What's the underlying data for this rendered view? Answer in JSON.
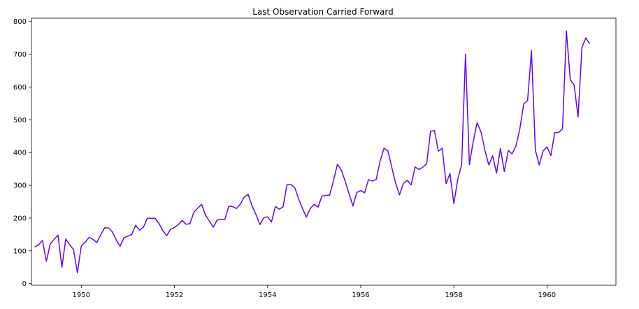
{
  "chart_data": {
    "type": "line",
    "title": "Last Observation Carried Forward",
    "xlabel": "",
    "ylabel": "",
    "xlim": [
      1948.93,
      1961.48
    ],
    "ylim": [
      -5,
      810
    ],
    "x_ticks": [
      1950,
      1952,
      1954,
      1956,
      1958,
      1960
    ],
    "y_ticks": [
      0,
      100,
      200,
      300,
      400,
      500,
      600,
      700,
      800
    ],
    "grid": false,
    "legend": "none",
    "series": [
      {
        "color": "#6600ff",
        "x_start": 1949.0,
        "x_step": 0.083333,
        "values": [
          112,
          118,
          132,
          68,
          121,
          135,
          148,
          50,
          136,
          119,
          104,
          33,
          115,
          126,
          141,
          135,
          125,
          149,
          170,
          170,
          158,
          133,
          114,
          140,
          145,
          150,
          178,
          163,
          172,
          199,
          199,
          199,
          184,
          162,
          146,
          166,
          171,
          180,
          193,
          181,
          183,
          218,
          230,
          242,
          209,
          191,
          172,
          194,
          196,
          196,
          236,
          235,
          229,
          243,
          264,
          272,
          237,
          211,
          180,
          201,
          204,
          188,
          235,
          227,
          234,
          302,
          302,
          293,
          259,
          229,
          203,
          229,
          242,
          233,
          267,
          269,
          270,
          315,
          364,
          347,
          312,
          274,
          237,
          278,
          284,
          277,
          317,
          313,
          318,
          374,
          413,
          405,
          355,
          306,
          271,
          306,
          315,
          301,
          356,
          348,
          355,
          366,
          465,
          467,
          404,
          413,
          305,
          336,
          244,
          318,
          362,
          700,
          363,
          435,
          491,
          463,
          407,
          362,
          390,
          337,
          412,
          342,
          406,
          396,
          420,
          472,
          548,
          559,
          711,
          407,
          362,
          405,
          417,
          391,
          461,
          461,
          472,
          771,
          622,
          606,
          508,
          720,
          750,
          732
        ]
      }
    ]
  }
}
